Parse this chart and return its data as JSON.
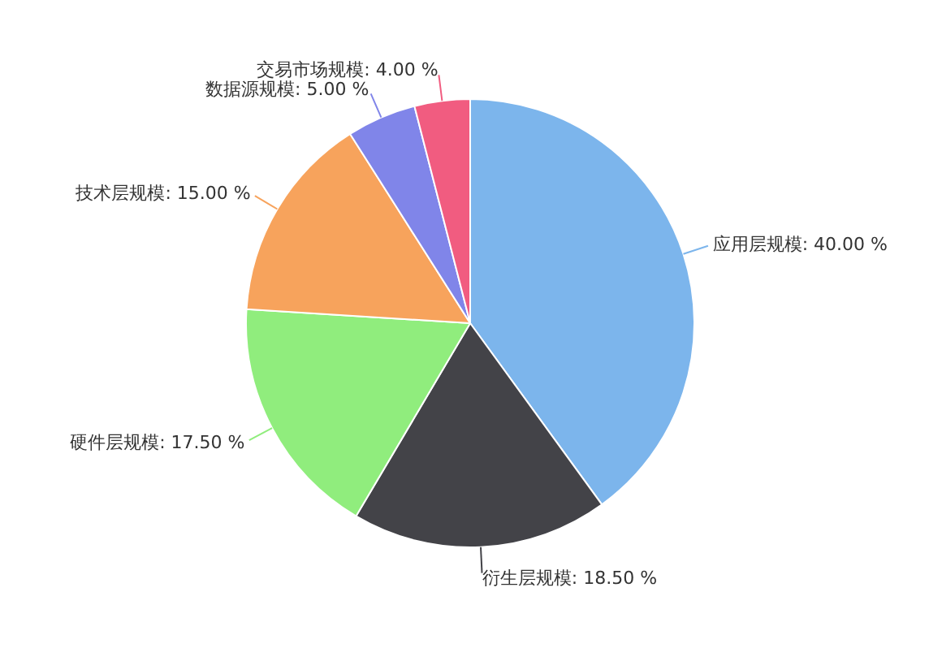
{
  "chart_data": {
    "type": "pie",
    "categories": [
      "应用层规模",
      "衍生层规模",
      "硬件层规模",
      "技术层规模",
      "数据源规模",
      "交易市场规模"
    ],
    "values": [
      40,
      18.5,
      17.5,
      15,
      5,
      4
    ],
    "value_labels": [
      "40.00 %",
      "18.50 %",
      "17.50 %",
      "15.00 %",
      "5.00 %",
      "4.00 %"
    ],
    "colors": [
      "#7cb5ec",
      "#434348",
      "#90ed7d",
      "#f7a35c",
      "#8085e9",
      "#f15c80"
    ]
  }
}
